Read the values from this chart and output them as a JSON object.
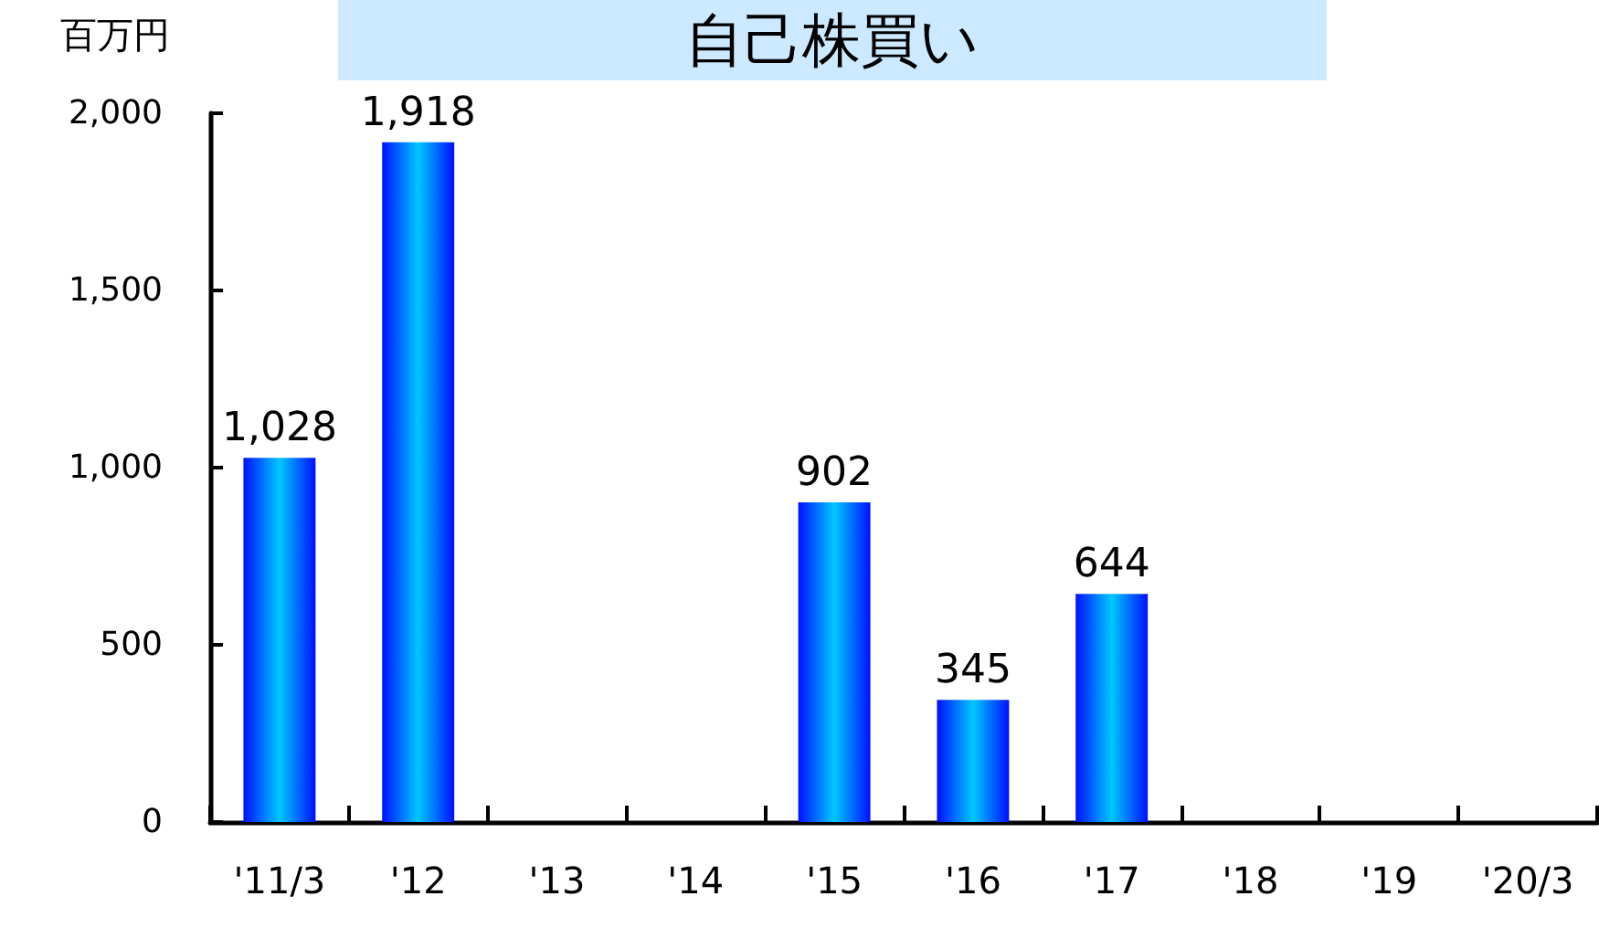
{
  "chart_data": {
    "type": "bar",
    "title": "自己株買い",
    "ylabel": "百万円",
    "categories": [
      "'11/3",
      "'12",
      "'13",
      "'14",
      "'15",
      "'16",
      "'17",
      "'18",
      "'19",
      "'20/3"
    ],
    "values": [
      1028,
      1918,
      null,
      null,
      902,
      345,
      644,
      null,
      null,
      null
    ],
    "value_labels": [
      "1,028",
      "1,918",
      null,
      null,
      "902",
      "345",
      "644",
      null,
      null,
      null
    ],
    "color": "#00c8ff",
    "ylim": [
      0,
      2000
    ],
    "yticks": [
      0,
      500,
      {
        "value": 1000,
        "label": "1,000"
      },
      {
        "value": 1500,
        "label": "1,500"
      },
      {
        "value": 2000,
        "label": "2,000"
      }
    ],
    "grid": false
  }
}
